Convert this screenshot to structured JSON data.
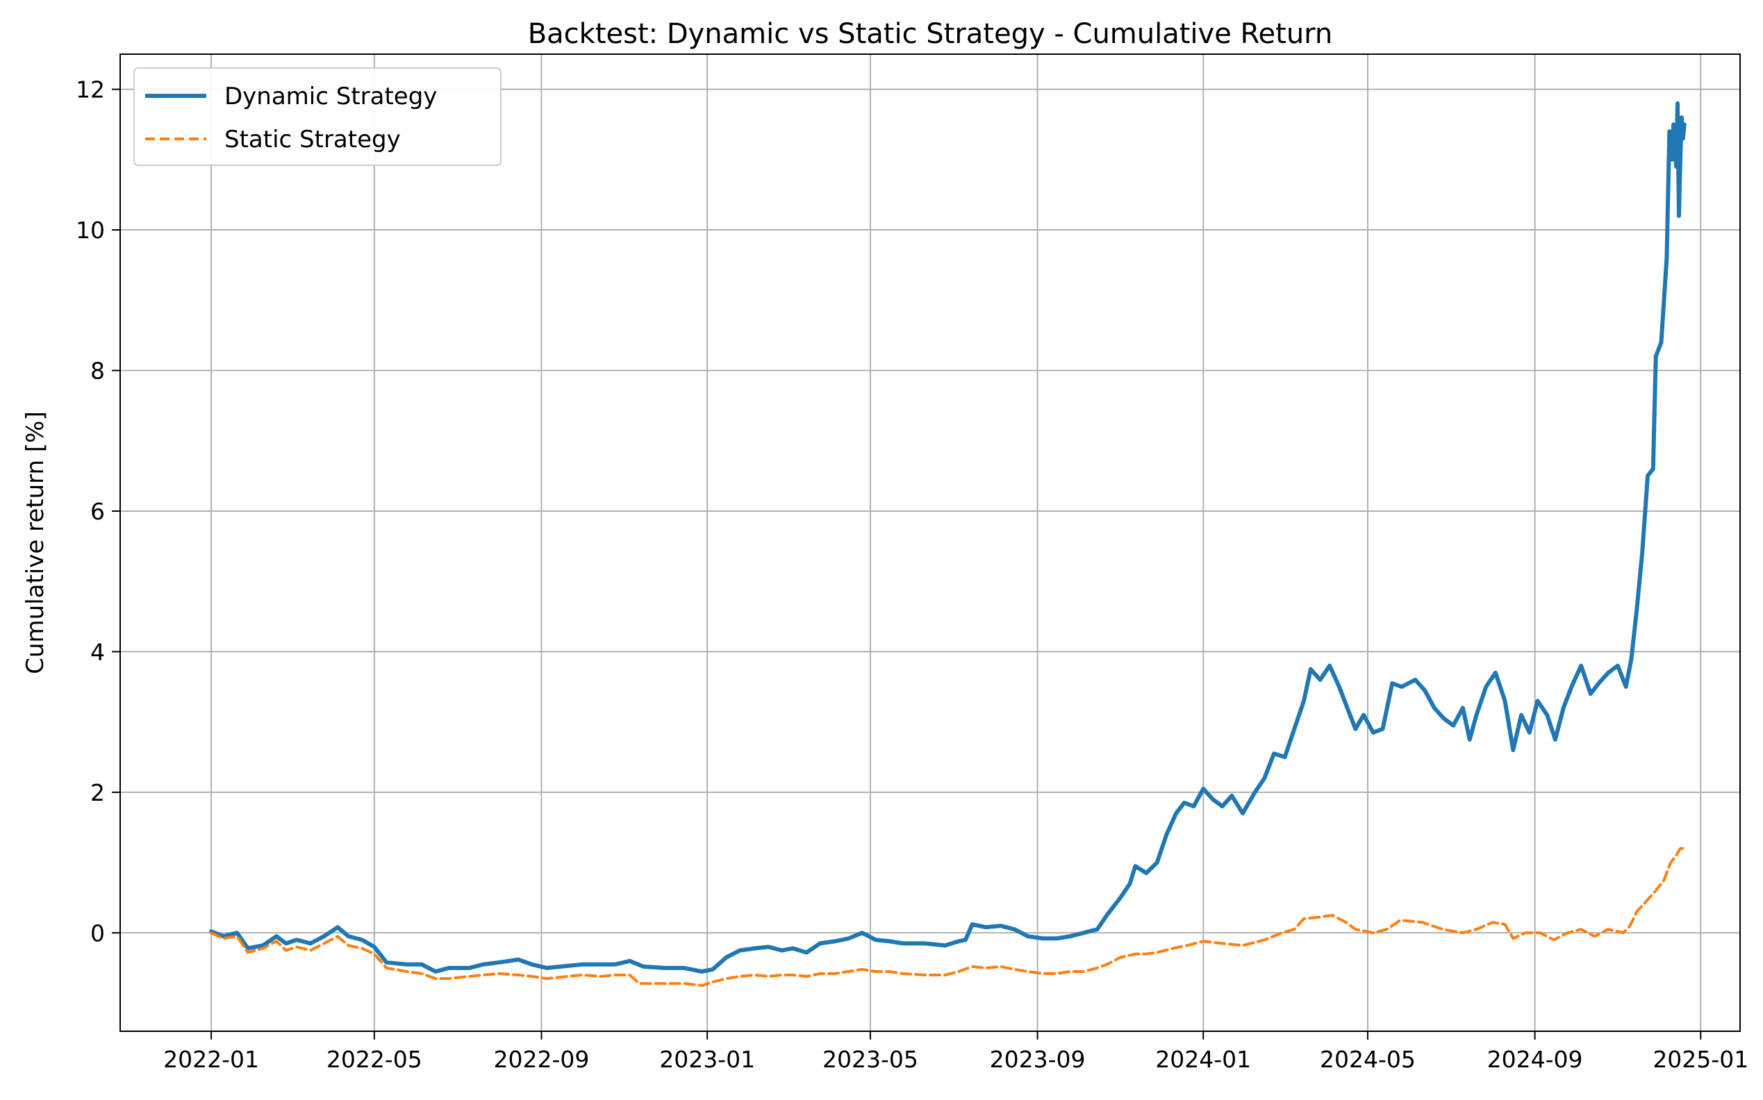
{
  "chart_data": {
    "type": "line",
    "title": "Backtest: Dynamic vs Static Strategy - Cumulative Return",
    "xlabel": "",
    "ylabel": "Cumulative return [%]",
    "xlim": [
      "2021-10-26",
      "2025-01-30"
    ],
    "ylim": [
      -1.4,
      12.5
    ],
    "grid": true,
    "legend_position": "top-left",
    "x_ticks": [
      "2022-01",
      "2022-05",
      "2022-09",
      "2023-01",
      "2023-05",
      "2023-09",
      "2024-01",
      "2024-05",
      "2024-09",
      "2025-01"
    ],
    "y_ticks": [
      0,
      2,
      4,
      6,
      8,
      10,
      12
    ],
    "series": [
      {
        "name": "Dynamic Strategy",
        "color": "#1f77b4",
        "style": "solid",
        "points": [
          [
            "2022-01-01",
            0.02
          ],
          [
            "2022-01-10",
            -0.05
          ],
          [
            "2022-01-20",
            0.0
          ],
          [
            "2022-01-28",
            -0.22
          ],
          [
            "2022-02-08",
            -0.18
          ],
          [
            "2022-02-18",
            -0.05
          ],
          [
            "2022-02-25",
            -0.15
          ],
          [
            "2022-03-05",
            -0.1
          ],
          [
            "2022-03-15",
            -0.15
          ],
          [
            "2022-03-25",
            -0.05
          ],
          [
            "2022-04-04",
            0.08
          ],
          [
            "2022-04-12",
            -0.05
          ],
          [
            "2022-04-22",
            -0.1
          ],
          [
            "2022-05-01",
            -0.2
          ],
          [
            "2022-05-10",
            -0.42
          ],
          [
            "2022-05-25",
            -0.45
          ],
          [
            "2022-06-05",
            -0.45
          ],
          [
            "2022-06-15",
            -0.55
          ],
          [
            "2022-06-25",
            -0.5
          ],
          [
            "2022-07-10",
            -0.5
          ],
          [
            "2022-07-20",
            -0.45
          ],
          [
            "2022-08-01",
            -0.42
          ],
          [
            "2022-08-15",
            -0.38
          ],
          [
            "2022-08-25",
            -0.45
          ],
          [
            "2022-09-05",
            -0.5
          ],
          [
            "2022-09-15",
            -0.48
          ],
          [
            "2022-10-01",
            -0.45
          ],
          [
            "2022-10-15",
            -0.45
          ],
          [
            "2022-10-25",
            -0.45
          ],
          [
            "2022-11-05",
            -0.4
          ],
          [
            "2022-11-15",
            -0.48
          ],
          [
            "2022-12-01",
            -0.5
          ],
          [
            "2022-12-15",
            -0.5
          ],
          [
            "2022-12-28",
            -0.55
          ],
          [
            "2023-01-05",
            -0.52
          ],
          [
            "2023-01-15",
            -0.35
          ],
          [
            "2023-01-25",
            -0.25
          ],
          [
            "2023-02-05",
            -0.22
          ],
          [
            "2023-02-15",
            -0.2
          ],
          [
            "2023-02-25",
            -0.25
          ],
          [
            "2023-03-05",
            -0.22
          ],
          [
            "2023-03-15",
            -0.28
          ],
          [
            "2023-03-25",
            -0.15
          ],
          [
            "2023-04-05",
            -0.12
          ],
          [
            "2023-04-15",
            -0.08
          ],
          [
            "2023-04-25",
            0.0
          ],
          [
            "2023-05-05",
            -0.1
          ],
          [
            "2023-05-15",
            -0.12
          ],
          [
            "2023-05-25",
            -0.15
          ],
          [
            "2023-06-10",
            -0.15
          ],
          [
            "2023-06-25",
            -0.18
          ],
          [
            "2023-07-05",
            -0.12
          ],
          [
            "2023-07-10",
            -0.1
          ],
          [
            "2023-07-15",
            0.12
          ],
          [
            "2023-07-25",
            0.08
          ],
          [
            "2023-08-05",
            0.1
          ],
          [
            "2023-08-15",
            0.05
          ],
          [
            "2023-08-25",
            -0.05
          ],
          [
            "2023-09-05",
            -0.08
          ],
          [
            "2023-09-15",
            -0.08
          ],
          [
            "2023-09-25",
            -0.05
          ],
          [
            "2023-10-05",
            0.0
          ],
          [
            "2023-10-15",
            0.05
          ],
          [
            "2023-10-22",
            0.25
          ],
          [
            "2023-11-01",
            0.5
          ],
          [
            "2023-11-08",
            0.7
          ],
          [
            "2023-11-12",
            0.95
          ],
          [
            "2023-11-20",
            0.85
          ],
          [
            "2023-11-28",
            1.0
          ],
          [
            "2023-12-05",
            1.4
          ],
          [
            "2023-12-12",
            1.7
          ],
          [
            "2023-12-18",
            1.85
          ],
          [
            "2023-12-25",
            1.8
          ],
          [
            "2024-01-01",
            2.05
          ],
          [
            "2024-01-08",
            1.9
          ],
          [
            "2024-01-15",
            1.8
          ],
          [
            "2024-01-22",
            1.95
          ],
          [
            "2024-01-30",
            1.7
          ],
          [
            "2024-02-08",
            2.0
          ],
          [
            "2024-02-15",
            2.2
          ],
          [
            "2024-02-22",
            2.55
          ],
          [
            "2024-03-01",
            2.5
          ],
          [
            "2024-03-08",
            2.9
          ],
          [
            "2024-03-15",
            3.3
          ],
          [
            "2024-03-20",
            3.75
          ],
          [
            "2024-03-27",
            3.6
          ],
          [
            "2024-04-03",
            3.8
          ],
          [
            "2024-04-10",
            3.5
          ],
          [
            "2024-04-16",
            3.2
          ],
          [
            "2024-04-22",
            2.9
          ],
          [
            "2024-04-28",
            3.1
          ],
          [
            "2024-05-05",
            2.85
          ],
          [
            "2024-05-12",
            2.9
          ],
          [
            "2024-05-19",
            3.55
          ],
          [
            "2024-05-26",
            3.5
          ],
          [
            "2024-06-05",
            3.6
          ],
          [
            "2024-06-12",
            3.45
          ],
          [
            "2024-06-19",
            3.2
          ],
          [
            "2024-06-26",
            3.05
          ],
          [
            "2024-07-03",
            2.95
          ],
          [
            "2024-07-10",
            3.2
          ],
          [
            "2024-07-15",
            2.75
          ],
          [
            "2024-07-20",
            3.1
          ],
          [
            "2024-07-27",
            3.5
          ],
          [
            "2024-08-03",
            3.7
          ],
          [
            "2024-08-10",
            3.3
          ],
          [
            "2024-08-16",
            2.6
          ],
          [
            "2024-08-22",
            3.1
          ],
          [
            "2024-08-28",
            2.85
          ],
          [
            "2024-09-03",
            3.3
          ],
          [
            "2024-09-10",
            3.1
          ],
          [
            "2024-09-16",
            2.75
          ],
          [
            "2024-09-22",
            3.2
          ],
          [
            "2024-09-28",
            3.5
          ],
          [
            "2024-10-05",
            3.8
          ],
          [
            "2024-10-12",
            3.4
          ],
          [
            "2024-10-18",
            3.55
          ],
          [
            "2024-10-25",
            3.7
          ],
          [
            "2024-11-01",
            3.8
          ],
          [
            "2024-11-07",
            3.5
          ],
          [
            "2024-11-11",
            3.9
          ],
          [
            "2024-11-15",
            4.6
          ],
          [
            "2024-11-19",
            5.4
          ],
          [
            "2024-11-23",
            6.5
          ],
          [
            "2024-11-27",
            6.6
          ],
          [
            "2024-11-29",
            8.2
          ],
          [
            "2024-12-03",
            8.4
          ],
          [
            "2024-12-07",
            9.6
          ],
          [
            "2024-12-09",
            11.4
          ],
          [
            "2024-12-11",
            11.0
          ],
          [
            "2024-12-12",
            11.5
          ],
          [
            "2024-12-14",
            10.9
          ],
          [
            "2024-12-15",
            11.8
          ],
          [
            "2024-12-16",
            10.2
          ],
          [
            "2024-12-17",
            11.0
          ],
          [
            "2024-12-18",
            11.6
          ],
          [
            "2024-12-19",
            11.3
          ],
          [
            "2024-12-20",
            11.5
          ]
        ]
      },
      {
        "name": "Static Strategy",
        "color": "#ff7f0e",
        "style": "dashed",
        "points": [
          [
            "2022-01-01",
            0.0
          ],
          [
            "2022-01-10",
            -0.08
          ],
          [
            "2022-01-20",
            -0.05
          ],
          [
            "2022-01-28",
            -0.28
          ],
          [
            "2022-02-08",
            -0.22
          ],
          [
            "2022-02-18",
            -0.12
          ],
          [
            "2022-02-25",
            -0.25
          ],
          [
            "2022-03-05",
            -0.2
          ],
          [
            "2022-03-15",
            -0.25
          ],
          [
            "2022-03-25",
            -0.15
          ],
          [
            "2022-04-04",
            -0.05
          ],
          [
            "2022-04-12",
            -0.18
          ],
          [
            "2022-04-22",
            -0.22
          ],
          [
            "2022-05-01",
            -0.3
          ],
          [
            "2022-05-10",
            -0.5
          ],
          [
            "2022-05-25",
            -0.55
          ],
          [
            "2022-06-05",
            -0.58
          ],
          [
            "2022-06-15",
            -0.65
          ],
          [
            "2022-06-25",
            -0.65
          ],
          [
            "2022-07-10",
            -0.62
          ],
          [
            "2022-07-20",
            -0.6
          ],
          [
            "2022-08-01",
            -0.58
          ],
          [
            "2022-08-15",
            -0.6
          ],
          [
            "2022-08-25",
            -0.62
          ],
          [
            "2022-09-05",
            -0.65
          ],
          [
            "2022-09-15",
            -0.63
          ],
          [
            "2022-10-01",
            -0.6
          ],
          [
            "2022-10-15",
            -0.62
          ],
          [
            "2022-10-25",
            -0.6
          ],
          [
            "2022-11-05",
            -0.6
          ],
          [
            "2022-11-12",
            -0.72
          ],
          [
            "2022-12-01",
            -0.72
          ],
          [
            "2022-12-15",
            -0.72
          ],
          [
            "2022-12-28",
            -0.75
          ],
          [
            "2023-01-05",
            -0.7
          ],
          [
            "2023-01-15",
            -0.65
          ],
          [
            "2023-01-25",
            -0.62
          ],
          [
            "2023-02-05",
            -0.6
          ],
          [
            "2023-02-15",
            -0.62
          ],
          [
            "2023-02-25",
            -0.6
          ],
          [
            "2023-03-05",
            -0.6
          ],
          [
            "2023-03-15",
            -0.62
          ],
          [
            "2023-03-25",
            -0.58
          ],
          [
            "2023-04-05",
            -0.58
          ],
          [
            "2023-04-15",
            -0.55
          ],
          [
            "2023-04-25",
            -0.52
          ],
          [
            "2023-05-05",
            -0.55
          ],
          [
            "2023-05-15",
            -0.55
          ],
          [
            "2023-05-25",
            -0.58
          ],
          [
            "2023-06-10",
            -0.6
          ],
          [
            "2023-06-25",
            -0.6
          ],
          [
            "2023-07-05",
            -0.55
          ],
          [
            "2023-07-15",
            -0.48
          ],
          [
            "2023-07-25",
            -0.5
          ],
          [
            "2023-08-05",
            -0.48
          ],
          [
            "2023-08-15",
            -0.52
          ],
          [
            "2023-08-25",
            -0.55
          ],
          [
            "2023-09-05",
            -0.58
          ],
          [
            "2023-09-15",
            -0.58
          ],
          [
            "2023-09-25",
            -0.55
          ],
          [
            "2023-10-05",
            -0.55
          ],
          [
            "2023-10-15",
            -0.5
          ],
          [
            "2023-10-22",
            -0.45
          ],
          [
            "2023-11-01",
            -0.35
          ],
          [
            "2023-11-12",
            -0.3
          ],
          [
            "2023-11-20",
            -0.3
          ],
          [
            "2023-11-28",
            -0.28
          ],
          [
            "2023-12-10",
            -0.22
          ],
          [
            "2023-12-20",
            -0.18
          ],
          [
            "2024-01-01",
            -0.12
          ],
          [
            "2024-01-15",
            -0.15
          ],
          [
            "2024-01-30",
            -0.18
          ],
          [
            "2024-02-15",
            -0.1
          ],
          [
            "2024-02-28",
            0.0
          ],
          [
            "2024-03-08",
            0.05
          ],
          [
            "2024-03-15",
            0.2
          ],
          [
            "2024-03-25",
            0.22
          ],
          [
            "2024-04-05",
            0.25
          ],
          [
            "2024-04-15",
            0.15
          ],
          [
            "2024-04-22",
            0.05
          ],
          [
            "2024-05-05",
            0.0
          ],
          [
            "2024-05-15",
            0.05
          ],
          [
            "2024-05-25",
            0.18
          ],
          [
            "2024-06-10",
            0.15
          ],
          [
            "2024-06-25",
            0.05
          ],
          [
            "2024-07-10",
            0.0
          ],
          [
            "2024-07-20",
            0.05
          ],
          [
            "2024-08-01",
            0.15
          ],
          [
            "2024-08-10",
            0.12
          ],
          [
            "2024-08-16",
            -0.08
          ],
          [
            "2024-08-25",
            0.0
          ],
          [
            "2024-09-05",
            0.0
          ],
          [
            "2024-09-15",
            -0.1
          ],
          [
            "2024-09-25",
            0.0
          ],
          [
            "2024-10-05",
            0.05
          ],
          [
            "2024-10-15",
            -0.05
          ],
          [
            "2024-10-25",
            0.05
          ],
          [
            "2024-11-05",
            0.0
          ],
          [
            "2024-11-10",
            0.1
          ],
          [
            "2024-11-15",
            0.3
          ],
          [
            "2024-11-22",
            0.45
          ],
          [
            "2024-11-29",
            0.6
          ],
          [
            "2024-12-05",
            0.75
          ],
          [
            "2024-12-10",
            1.0
          ],
          [
            "2024-12-14",
            1.1
          ],
          [
            "2024-12-17",
            1.2
          ],
          [
            "2024-12-20",
            1.2
          ]
        ]
      }
    ]
  }
}
